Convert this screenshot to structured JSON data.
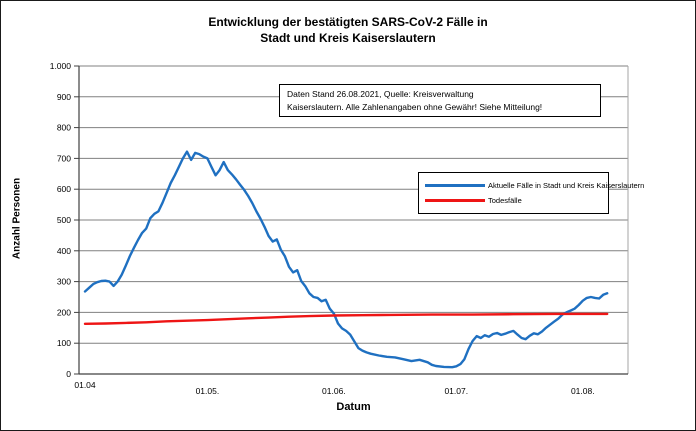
{
  "figure": {
    "title_line1": "Entwicklung der bestätigten SARS-CoV-2 Fälle in",
    "title_line2": "Stadt und Kreis Kaiserslautern",
    "note_line1": "Daten Stand 26.08.2021, Quelle: Kreisverwaltung",
    "note_line2": "Kaiserslautern. Alle Zahlenangaben ohne Gewähr! Siehe Mitteilung!"
  },
  "chart_data": {
    "type": "line",
    "title": "Entwicklung der bestätigten SARS-CoV-2 Fälle in Stadt und Kreis Kaiserslautern",
    "xlabel": "Datum",
    "ylabel": "Anzahl Personen",
    "ylim": [
      0,
      1000
    ],
    "grid": true,
    "legend_position": "inside-right",
    "x_unit": "days since 01.04.2021",
    "xticks": [
      {
        "day": 0,
        "label": "01.04"
      },
      {
        "day": 30,
        "label": "01.05."
      },
      {
        "day": 61,
        "label": "01.06."
      },
      {
        "day": 91,
        "label": "01.07."
      },
      {
        "day": 122,
        "label": "01.08."
      }
    ],
    "yticks": [
      {
        "v": 0,
        "label": "0"
      },
      {
        "v": 100,
        "label": "100"
      },
      {
        "v": 200,
        "label": "200"
      },
      {
        "v": 300,
        "label": "300"
      },
      {
        "v": 400,
        "label": "400"
      },
      {
        "v": 500,
        "label": "500"
      },
      {
        "v": 600,
        "label": "600"
      },
      {
        "v": 700,
        "label": "700"
      },
      {
        "v": 800,
        "label": "800"
      },
      {
        "v": 900,
        "label": "900"
      },
      {
        "v": 1000,
        "label": "1.000"
      }
    ],
    "colors": {
      "cases_line": "#1f70c1",
      "deaths_line": "#ee1515",
      "gridline": "#808080",
      "axis": "#404040",
      "plot_border": "#a6a6a6",
      "text": "#000000"
    },
    "series": [
      {
        "name": "Aktuelle Fälle in Stadt und Kreis Kaiserslautern",
        "color": "#1f70c1",
        "points": [
          [
            0,
            268
          ],
          [
            1,
            280
          ],
          [
            2,
            292
          ],
          [
            3,
            298
          ],
          [
            4,
            302
          ],
          [
            5,
            303
          ],
          [
            6,
            300
          ],
          [
            7,
            286
          ],
          [
            8,
            300
          ],
          [
            9,
            322
          ],
          [
            10,
            352
          ],
          [
            11,
            383
          ],
          [
            12,
            410
          ],
          [
            13,
            435
          ],
          [
            14,
            458
          ],
          [
            15,
            472
          ],
          [
            16,
            506
          ],
          [
            17,
            520
          ],
          [
            18,
            528
          ],
          [
            19,
            556
          ],
          [
            20,
            588
          ],
          [
            21,
            620
          ],
          [
            22,
            645
          ],
          [
            23,
            672
          ],
          [
            24,
            700
          ],
          [
            25,
            722
          ],
          [
            26,
            695
          ],
          [
            27,
            718
          ],
          [
            28,
            714
          ],
          [
            29,
            706
          ],
          [
            30,
            700
          ],
          [
            31,
            672
          ],
          [
            32,
            645
          ],
          [
            33,
            662
          ],
          [
            34,
            688
          ],
          [
            35,
            662
          ],
          [
            36,
            648
          ],
          [
            37,
            632
          ],
          [
            38,
            615
          ],
          [
            39,
            598
          ],
          [
            40,
            578
          ],
          [
            41,
            555
          ],
          [
            42,
            528
          ],
          [
            43,
            505
          ],
          [
            44,
            478
          ],
          [
            45,
            448
          ],
          [
            46,
            430
          ],
          [
            47,
            437
          ],
          [
            48,
            404
          ],
          [
            49,
            382
          ],
          [
            50,
            348
          ],
          [
            51,
            330
          ],
          [
            52,
            337
          ],
          [
            53,
            302
          ],
          [
            54,
            285
          ],
          [
            55,
            262
          ],
          [
            56,
            250
          ],
          [
            57,
            247
          ],
          [
            58,
            236
          ],
          [
            59,
            241
          ],
          [
            60,
            212
          ],
          [
            61,
            196
          ],
          [
            62,
            164
          ],
          [
            63,
            148
          ],
          [
            64,
            140
          ],
          [
            65,
            128
          ],
          [
            66,
            106
          ],
          [
            67,
            84
          ],
          [
            68,
            76
          ],
          [
            69,
            70
          ],
          [
            70,
            66
          ],
          [
            72,
            60
          ],
          [
            74,
            56
          ],
          [
            76,
            54
          ],
          [
            78,
            48
          ],
          [
            80,
            42
          ],
          [
            82,
            46
          ],
          [
            84,
            38
          ],
          [
            85,
            30
          ],
          [
            86,
            26
          ],
          [
            88,
            23
          ],
          [
            90,
            22
          ],
          [
            91,
            25
          ],
          [
            92,
            32
          ],
          [
            93,
            48
          ],
          [
            94,
            81
          ],
          [
            95,
            107
          ],
          [
            96,
            123
          ],
          [
            97,
            117
          ],
          [
            98,
            126
          ],
          [
            99,
            121
          ],
          [
            100,
            130
          ],
          [
            101,
            133
          ],
          [
            102,
            127
          ],
          [
            103,
            131
          ],
          [
            104,
            136
          ],
          [
            105,
            140
          ],
          [
            106,
            128
          ],
          [
            107,
            117
          ],
          [
            108,
            113
          ],
          [
            109,
            124
          ],
          [
            110,
            132
          ],
          [
            111,
            129
          ],
          [
            112,
            138
          ],
          [
            113,
            150
          ],
          [
            114,
            160
          ],
          [
            115,
            170
          ],
          [
            116,
            180
          ],
          [
            117,
            193
          ],
          [
            118,
            200
          ],
          [
            119,
            206
          ],
          [
            120,
            212
          ],
          [
            121,
            224
          ],
          [
            122,
            238
          ],
          [
            123,
            247
          ],
          [
            124,
            250
          ],
          [
            125,
            247
          ],
          [
            126,
            245
          ],
          [
            127,
            257
          ],
          [
            128,
            262
          ]
        ]
      },
      {
        "name": "Todesfälle",
        "color": "#ee1515",
        "points": [
          [
            0,
            163
          ],
          [
            5,
            164
          ],
          [
            10,
            166
          ],
          [
            15,
            168
          ],
          [
            20,
            171
          ],
          [
            25,
            173
          ],
          [
            30,
            175
          ],
          [
            35,
            178
          ],
          [
            40,
            181
          ],
          [
            45,
            183
          ],
          [
            50,
            186
          ],
          [
            55,
            188
          ],
          [
            61,
            190
          ],
          [
            68,
            191
          ],
          [
            75,
            192
          ],
          [
            85,
            193
          ],
          [
            95,
            193
          ],
          [
            105,
            194
          ],
          [
            115,
            195
          ],
          [
            128,
            195
          ]
        ]
      }
    ]
  }
}
